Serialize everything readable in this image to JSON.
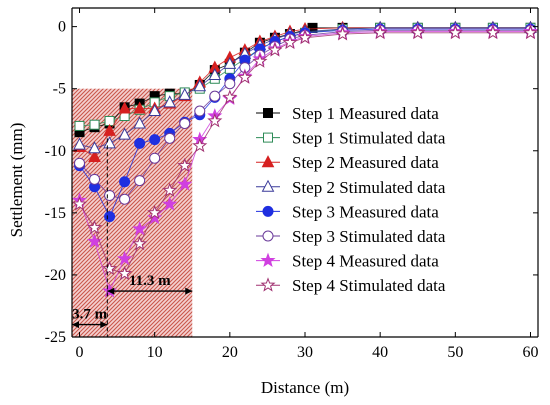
{
  "chart_data": {
    "type": "scatter",
    "xlabel": "Distance (m)",
    "ylabel": "Settlement (mm)",
    "xlim": [
      -1,
      61
    ],
    "ylim": [
      -25,
      1.5
    ],
    "xticks": [
      0,
      10,
      20,
      30,
      40,
      50,
      60
    ],
    "yticks": [
      0,
      -5,
      -10,
      -15,
      -20,
      -25
    ],
    "grid": false,
    "legend_position": "right",
    "shaded_region": {
      "x": [
        -1,
        15
      ],
      "y": [
        -25,
        -5
      ],
      "color": "#c0392b"
    },
    "annotations": [
      {
        "label": "11.3 m",
        "x_from": 3.7,
        "x_to": 15,
        "y": -21.3
      },
      {
        "label": "3.7 m",
        "x_from": -1,
        "x_to": 3.7,
        "y": -24
      }
    ],
    "series": [
      {
        "name": "Step 1 Measured data",
        "marker": "square",
        "filled": true,
        "color": "#000000",
        "x": [
          0,
          2,
          4,
          6,
          8,
          10,
          12,
          14,
          16,
          18,
          20,
          22,
          24,
          26,
          28,
          31,
          35,
          40,
          45,
          50,
          55,
          60
        ],
        "y": [
          -8.5,
          -8.1,
          -7.8,
          -6.5,
          -6.2,
          -5.6,
          -5.4,
          -5.4,
          -4.7,
          -3.5,
          -3.0,
          -2.1,
          -1.3,
          -0.9,
          -0.6,
          -0.1,
          -0.1,
          -0.1,
          -0.1,
          -0.1,
          -0.1,
          -0.1
        ]
      },
      {
        "name": "Step 1 Stimulated data",
        "marker": "square",
        "filled": false,
        "color": "#2e8b57",
        "x": [
          0,
          2,
          4,
          6,
          8,
          10,
          12,
          14,
          16,
          18,
          20,
          22,
          24,
          26,
          28,
          30,
          35,
          40,
          45,
          50,
          55,
          60
        ],
        "y": [
          -8.0,
          -7.9,
          -7.6,
          -7.2,
          -6.7,
          -6.1,
          -5.6,
          -5.3,
          -5.0,
          -4.2,
          -3.4,
          -2.6,
          -1.8,
          -1.2,
          -0.8,
          -0.5,
          -0.2,
          -0.1,
          -0.1,
          -0.1,
          -0.1,
          -0.1
        ]
      },
      {
        "name": "Step 2 Measured data",
        "marker": "triangle",
        "filled": true,
        "color": "#d62020",
        "x": [
          0,
          2,
          4,
          6,
          8,
          10,
          12,
          14,
          16,
          18,
          20,
          22,
          24,
          26,
          28,
          30,
          35,
          40,
          45,
          50,
          55,
          60
        ],
        "y": [
          -9.7,
          -10.5,
          -8.4,
          -6.6,
          -6.6,
          -6.6,
          -6.2,
          -5.6,
          -4.5,
          -3.3,
          -2.5,
          -1.9,
          -1.2,
          -0.8,
          -0.4,
          -0.2,
          -0.1,
          -0.1,
          -0.1,
          -0.1,
          -0.1,
          -0.1
        ]
      },
      {
        "name": "Step 2 Stimulated data",
        "marker": "triangle",
        "filled": false,
        "color": "#3a3a9a",
        "x": [
          0,
          2,
          4,
          6,
          8,
          10,
          12,
          14,
          16,
          18,
          20,
          22,
          24,
          26,
          28,
          30,
          35,
          40,
          45,
          50,
          55,
          60
        ],
        "y": [
          -9.5,
          -9.8,
          -9.4,
          -8.7,
          -7.8,
          -6.8,
          -6.1,
          -5.5,
          -4.8,
          -3.9,
          -3.0,
          -2.2,
          -1.5,
          -1.0,
          -0.6,
          -0.4,
          -0.2,
          -0.1,
          -0.1,
          -0.1,
          -0.1,
          -0.1
        ]
      },
      {
        "name": "Step 3 Measured data",
        "marker": "circle",
        "filled": true,
        "color": "#1f2fe0",
        "x": [
          0,
          2,
          4,
          6,
          8,
          10,
          12,
          14,
          16,
          18,
          20,
          22,
          24,
          26,
          28,
          30,
          35,
          40,
          45,
          50,
          55,
          60
        ],
        "y": [
          -11.2,
          -12.9,
          -15.3,
          -12.5,
          -9.4,
          -9.1,
          -8.6,
          -7.7,
          -7.1,
          -5.7,
          -4.2,
          -2.7,
          -1.8,
          -1.2,
          -0.8,
          -0.5,
          -0.3,
          -0.2,
          -0.2,
          -0.2,
          -0.2,
          -0.2
        ]
      },
      {
        "name": "Step 3 Stimulated data",
        "marker": "circle",
        "filled": false,
        "color": "#6a3a9a",
        "x": [
          0,
          2,
          4,
          6,
          8,
          10,
          12,
          14,
          16,
          18,
          20,
          22,
          24,
          26,
          28,
          30,
          35,
          40,
          45,
          50,
          55,
          60
        ],
        "y": [
          -11.0,
          -12.3,
          -13.6,
          -13.9,
          -12.4,
          -10.6,
          -9.0,
          -7.8,
          -6.8,
          -5.6,
          -4.6,
          -3.3,
          -2.3,
          -1.6,
          -1.0,
          -0.7,
          -0.4,
          -0.3,
          -0.3,
          -0.3,
          -0.3,
          -0.3
        ]
      },
      {
        "name": "Step 4 Measured data",
        "marker": "star",
        "filled": true,
        "color": "#d040e0",
        "x": [
          0,
          2,
          4,
          6,
          8,
          10,
          12,
          14,
          16,
          18,
          20,
          22,
          24,
          26,
          28,
          30,
          35,
          40,
          45,
          50,
          55,
          60
        ],
        "y": [
          -14.0,
          -17.3,
          -21.3,
          -18.7,
          -16.3,
          -15.4,
          -14.3,
          -12.7,
          -9.1,
          -7.2,
          -5.8,
          -4.0,
          -2.6,
          -1.8,
          -1.2,
          -0.8,
          -0.5,
          -0.4,
          -0.4,
          -0.4,
          -0.4,
          -0.4
        ]
      },
      {
        "name": "Step 4 Stimulated data",
        "marker": "star",
        "filled": false,
        "color": "#a03070",
        "x": [
          0,
          2,
          4,
          6,
          8,
          10,
          12,
          14,
          16,
          18,
          20,
          22,
          24,
          26,
          28,
          30,
          35,
          40,
          45,
          50,
          55,
          60
        ],
        "y": [
          -14.3,
          -16.2,
          -19.5,
          -19.9,
          -17.5,
          -15.0,
          -13.2,
          -11.2,
          -9.6,
          -7.6,
          -5.7,
          -4.1,
          -2.8,
          -1.9,
          -1.3,
          -0.9,
          -0.6,
          -0.5,
          -0.5,
          -0.5,
          -0.5,
          -0.5
        ]
      }
    ]
  }
}
